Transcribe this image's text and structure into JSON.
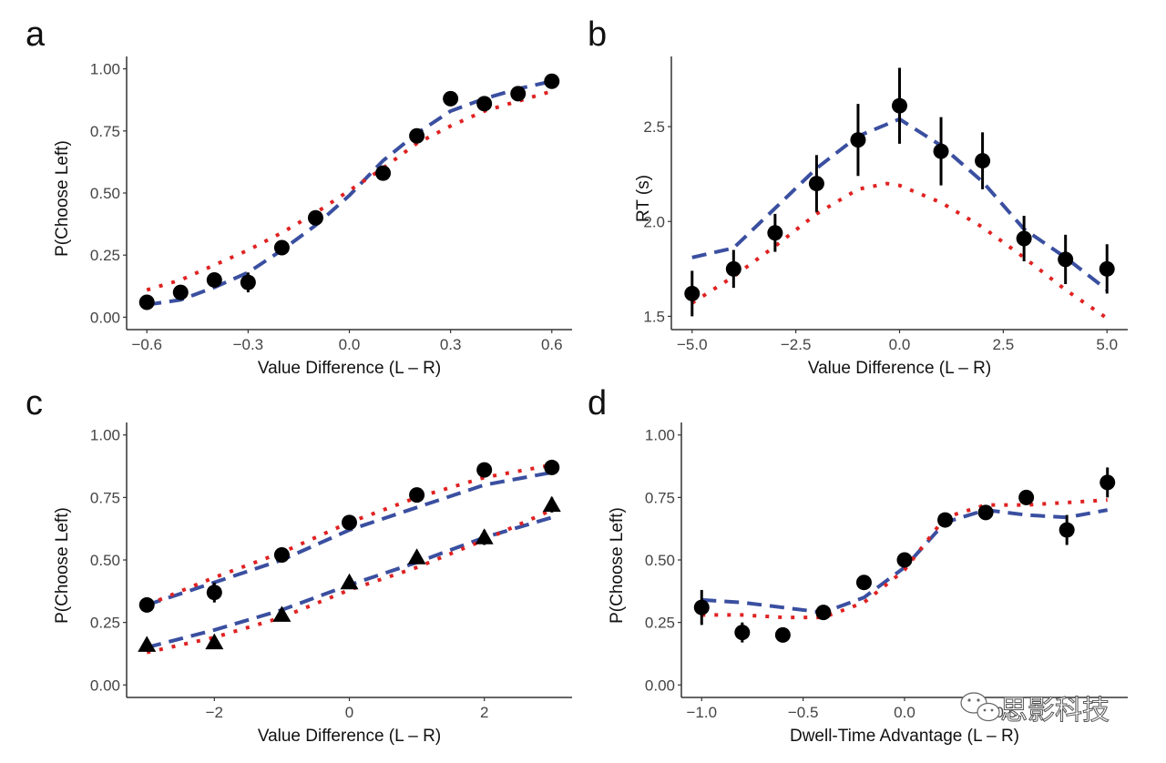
{
  "colors": {
    "data_points": "#000000",
    "model_dashed": "#3a4fa0",
    "model_dotted": "#e02222",
    "axis": "#333333"
  },
  "watermark": {
    "icon": "wechat-icon",
    "text": "思影科技"
  },
  "chart_data": [
    {
      "panel": "a",
      "type": "scatter",
      "title": "",
      "xlabel": "Value Difference (L – R)",
      "ylabel": "P(Choose Left)",
      "xlim": [
        -0.66,
        0.66
      ],
      "ylim": [
        -0.05,
        1.05
      ],
      "xticks": [
        -0.6,
        -0.3,
        0.0,
        0.3,
        0.6
      ],
      "xtick_labels": [
        "−0.6",
        "−0.3",
        "0.0",
        "0.3",
        "0.6"
      ],
      "yticks": [
        0,
        0.25,
        0.5,
        0.75,
        1.0
      ],
      "ytick_labels": [
        "0.00",
        "0.25",
        "0.50",
        "0.75",
        "1.00"
      ],
      "grid": false,
      "points": {
        "name": "Observed",
        "marker": "circle",
        "x": [
          -0.6,
          -0.5,
          -0.4,
          -0.3,
          -0.2,
          -0.1,
          0.1,
          0.2,
          0.3,
          0.4,
          0.5,
          0.6
        ],
        "y": [
          0.06,
          0.1,
          0.15,
          0.14,
          0.28,
          0.4,
          0.58,
          0.73,
          0.88,
          0.86,
          0.9,
          0.95
        ],
        "err": [
          0.01,
          0.02,
          0.03,
          0.04,
          0.02,
          0.02,
          0.01,
          0.02,
          0.02,
          0.01,
          0.01,
          0.01
        ]
      },
      "lines": [
        {
          "name": "Model (dashed)",
          "style": "dashed",
          "x": [
            -0.6,
            -0.5,
            -0.4,
            -0.3,
            -0.2,
            -0.1,
            0.0,
            0.1,
            0.2,
            0.3,
            0.4,
            0.5,
            0.6
          ],
          "y": [
            0.05,
            0.07,
            0.12,
            0.18,
            0.27,
            0.37,
            0.49,
            0.63,
            0.74,
            0.83,
            0.88,
            0.92,
            0.95
          ]
        },
        {
          "name": "Model (dotted)",
          "style": "dotted",
          "x": [
            -0.6,
            -0.5,
            -0.4,
            -0.3,
            -0.2,
            -0.1,
            0.0,
            0.1,
            0.2,
            0.3,
            0.4,
            0.5,
            0.6
          ],
          "y": [
            0.11,
            0.15,
            0.21,
            0.27,
            0.34,
            0.42,
            0.51,
            0.6,
            0.7,
            0.77,
            0.83,
            0.87,
            0.91
          ]
        }
      ]
    },
    {
      "panel": "b",
      "type": "scatter",
      "title": "",
      "xlabel": "Value Difference (L – R)",
      "ylabel": "RT (s)",
      "xlim": [
        -5.5,
        5.5
      ],
      "ylim": [
        1.43,
        2.87
      ],
      "xticks": [
        -5,
        -2.5,
        0,
        2.5,
        5
      ],
      "xtick_labels": [
        "−5.0",
        "−2.5",
        "0.0",
        "2.5",
        "5.0"
      ],
      "yticks": [
        1.5,
        2.0,
        2.5
      ],
      "ytick_labels": [
        "1.5",
        "2.0",
        "2.5"
      ],
      "grid": false,
      "points": {
        "name": "Observed",
        "marker": "circle",
        "x": [
          -5,
          -4,
          -3,
          -2,
          -1,
          0,
          1,
          2,
          3,
          4,
          5
        ],
        "y": [
          1.62,
          1.75,
          1.94,
          2.2,
          2.43,
          2.61,
          2.37,
          2.32,
          1.91,
          1.8,
          1.75
        ],
        "err": [
          0.12,
          0.1,
          0.1,
          0.15,
          0.19,
          0.2,
          0.18,
          0.15,
          0.12,
          0.13,
          0.13
        ]
      },
      "lines": [
        {
          "name": "Model (dashed)",
          "style": "dashed",
          "x": [
            -5,
            -4,
            -3,
            -2,
            -1,
            0,
            1,
            2,
            3,
            4,
            5
          ],
          "y": [
            1.81,
            1.86,
            2.07,
            2.28,
            2.45,
            2.54,
            2.4,
            2.21,
            1.96,
            1.81,
            1.64
          ]
        },
        {
          "name": "Model (dotted)",
          "style": "dotted",
          "x": [
            -5,
            -4,
            -3,
            -2,
            -1,
            -0.3,
            0,
            1,
            2,
            3,
            4,
            5
          ],
          "y": [
            1.57,
            1.71,
            1.87,
            2.04,
            2.17,
            2.2,
            2.19,
            2.1,
            1.97,
            1.81,
            1.64,
            1.49
          ]
        }
      ]
    },
    {
      "panel": "c",
      "type": "scatter",
      "title": "",
      "xlabel": "Value Difference (L – R)",
      "ylabel": "P(Choose Left)",
      "xlim": [
        -3.3,
        3.3
      ],
      "ylim": [
        -0.05,
        1.05
      ],
      "xticks": [
        -2,
        0,
        2
      ],
      "xtick_labels": [
        "−2",
        "0",
        "2"
      ],
      "yticks": [
        0,
        0.25,
        0.5,
        0.75,
        1.0
      ],
      "ytick_labels": [
        "0.00",
        "0.25",
        "0.50",
        "0.75",
        "1.00"
      ],
      "grid": false,
      "series": [
        {
          "name": "Condition 1",
          "marker": "circle",
          "x": [
            -3,
            -2,
            -1,
            0,
            1,
            2,
            3
          ],
          "y": [
            0.32,
            0.37,
            0.52,
            0.65,
            0.76,
            0.86,
            0.87
          ],
          "err": [
            0.03,
            0.04,
            0.03,
            0.01,
            0.01,
            0.01,
            0.01
          ]
        },
        {
          "name": "Condition 2",
          "marker": "triangle",
          "x": [
            -3,
            -2,
            -1,
            0,
            1,
            2,
            3
          ],
          "y": [
            0.16,
            0.17,
            0.28,
            0.41,
            0.51,
            0.59,
            0.72
          ],
          "err": [
            0.01,
            0.01,
            0.02,
            0.01,
            0.02,
            0.03,
            0.03
          ]
        }
      ],
      "lines": [
        {
          "name": "Model (dashed) - Condition 1",
          "style": "dashed",
          "x": [
            -3,
            -2,
            -1,
            0,
            1,
            2,
            3
          ],
          "y": [
            0.32,
            0.41,
            0.5,
            0.62,
            0.71,
            0.8,
            0.85
          ]
        },
        {
          "name": "Model (dotted) - Condition 1",
          "style": "dotted",
          "x": [
            -3,
            -2,
            -1,
            0,
            1,
            2,
            3
          ],
          "y": [
            0.32,
            0.43,
            0.53,
            0.65,
            0.75,
            0.83,
            0.88
          ]
        },
        {
          "name": "Model (dashed) - Condition 2",
          "style": "dashed",
          "x": [
            -3,
            -2,
            -1,
            0,
            1,
            2,
            3
          ],
          "y": [
            0.15,
            0.22,
            0.3,
            0.4,
            0.49,
            0.59,
            0.67
          ]
        },
        {
          "name": "Model (dotted) - Condition 2",
          "style": "dotted",
          "x": [
            -3,
            -2,
            -1,
            0,
            1,
            2,
            3
          ],
          "y": [
            0.13,
            0.19,
            0.27,
            0.38,
            0.47,
            0.58,
            0.7
          ]
        }
      ]
    },
    {
      "panel": "d",
      "type": "scatter",
      "title": "",
      "xlabel": "Dwell-Time Advantage (L – R)",
      "ylabel": "P(Choose Left)",
      "xlim": [
        -1.1,
        1.1
      ],
      "ylim": [
        -0.05,
        1.05
      ],
      "xticks": [
        -1.0,
        -0.5,
        0.0,
        0.5
      ],
      "xtick_labels": [
        "−1.0",
        "−0.5",
        "0.0",
        "0.5"
      ],
      "yticks": [
        0,
        0.25,
        0.5,
        0.75,
        1.0
      ],
      "ytick_labels": [
        "0.00",
        "0.25",
        "0.50",
        "0.75",
        "1.00"
      ],
      "grid": false,
      "points": {
        "name": "Observed",
        "marker": "circle",
        "x": [
          -1.0,
          -0.8,
          -0.6,
          -0.4,
          -0.2,
          0.0,
          0.2,
          0.4,
          0.6,
          0.8,
          1.0
        ],
        "y": [
          0.31,
          0.21,
          0.2,
          0.29,
          0.41,
          0.5,
          0.66,
          0.69,
          0.75,
          0.62,
          0.81
        ],
        "err": [
          0.07,
          0.04,
          0.01,
          0.02,
          0.01,
          0.02,
          0.01,
          0.01,
          0.03,
          0.06,
          0.06
        ]
      },
      "lines": [
        {
          "name": "Model (dashed)",
          "style": "dashed",
          "x": [
            -1.0,
            -0.8,
            -0.6,
            -0.4,
            -0.2,
            0.0,
            0.2,
            0.4,
            0.6,
            0.8,
            1.0
          ],
          "y": [
            0.34,
            0.33,
            0.31,
            0.29,
            0.35,
            0.47,
            0.65,
            0.7,
            0.68,
            0.67,
            0.7
          ]
        },
        {
          "name": "Model (dotted)",
          "style": "dotted",
          "x": [
            -1.0,
            -0.8,
            -0.6,
            -0.4,
            -0.2,
            0.0,
            0.2,
            0.4,
            0.6,
            0.8,
            1.0
          ],
          "y": [
            0.28,
            0.28,
            0.27,
            0.27,
            0.33,
            0.46,
            0.67,
            0.72,
            0.72,
            0.73,
            0.74
          ]
        }
      ]
    }
  ]
}
